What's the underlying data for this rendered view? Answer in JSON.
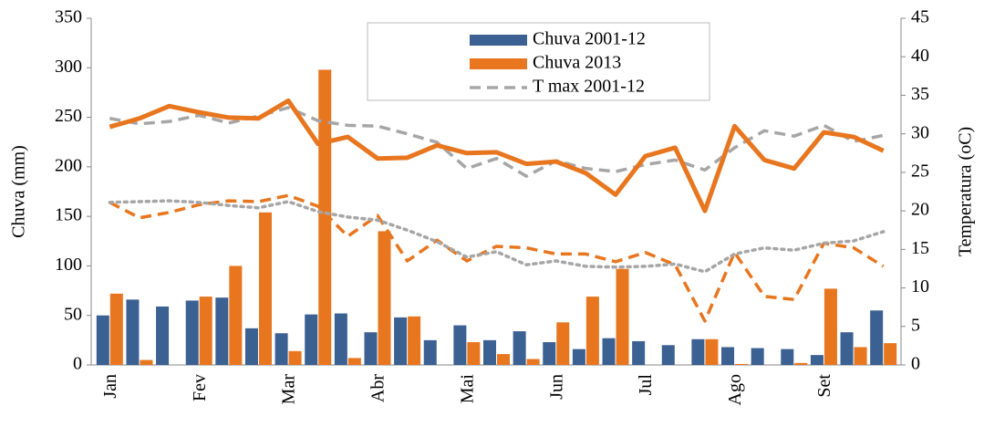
{
  "chart_data": {
    "type": "bar",
    "y_label": "Chuva (mm)",
    "y2_label": "Temperatura (oC)",
    "categories": [
      "Jan",
      null,
      null,
      "Fev",
      null,
      null,
      "Mar",
      null,
      null,
      "Abr",
      null,
      null,
      "Mai",
      null,
      null,
      "Jun",
      null,
      null,
      "Jul",
      null,
      null,
      "Ago",
      null,
      null,
      "Set",
      null,
      null
    ],
    "ylim": [
      0,
      350
    ],
    "yticks": [
      0,
      50,
      100,
      150,
      200,
      250,
      300,
      350
    ],
    "y2lim": [
      0,
      45
    ],
    "y2ticks": [
      0,
      5,
      10,
      15,
      20,
      25,
      30,
      35,
      40,
      45
    ],
    "series": [
      {
        "name": "Chuva 2001-12",
        "type": "bar",
        "color": "#3b6092",
        "values": [
          50,
          66,
          59,
          65,
          68,
          37,
          32,
          51,
          52,
          33,
          48,
          25,
          40,
          25,
          34,
          23,
          16,
          27,
          24,
          20,
          26,
          18,
          17,
          16,
          10,
          33,
          55
        ]
      },
      {
        "name": "Chuva 2013",
        "type": "bar",
        "color": "#e8761f",
        "values": [
          72,
          5,
          0,
          69,
          100,
          154,
          14,
          298,
          7,
          135,
          49,
          0,
          23,
          11,
          6,
          43,
          69,
          97,
          0,
          0,
          26,
          1,
          0,
          2,
          77,
          18,
          22
        ]
      },
      {
        "name": "T max 2001-12",
        "type": "line",
        "dash": "dashed",
        "axis": "y2",
        "color": "#a6a6a6",
        "values": [
          32.0,
          31.3,
          31.6,
          32.4,
          31.4,
          32.3,
          33.4,
          31.7,
          31.1,
          31.0,
          30.0,
          28.9,
          25.5,
          26.8,
          24.5,
          26.5,
          25.5,
          25.1,
          26.0,
          26.6,
          25.3,
          28.2,
          30.4,
          29.7,
          31.1,
          29.0,
          29.8
        ]
      },
      {
        "type": "line",
        "dash": "solid",
        "axis": "y2",
        "color": "#e8761f",
        "values": [
          30.9,
          32.0,
          33.6,
          32.8,
          32.1,
          32.0,
          34.3,
          28.7,
          29.6,
          26.8,
          26.9,
          28.5,
          27.5,
          27.6,
          26.1,
          26.4,
          24.9,
          22.1,
          27.1,
          28.2,
          20.0,
          31.0,
          26.6,
          25.5,
          30.2,
          29.6,
          27.8
        ]
      },
      {
        "type": "line",
        "dash": "dashed",
        "axis": "y2",
        "color": "#e8761f",
        "values": [
          21.1,
          19.1,
          19.8,
          20.8,
          21.3,
          21.2,
          22.0,
          20.6,
          16.7,
          19.4,
          13.5,
          16.2,
          13.5,
          15.4,
          15.2,
          14.4,
          14.4,
          13.4,
          14.6,
          13.0,
          5.7,
          14.6,
          8.9,
          8.5,
          15.8,
          15.2,
          12.8
        ]
      },
      {
        "type": "line",
        "dash": "dotted",
        "axis": "y2",
        "color": "#a6a6a6",
        "values": [
          21.1,
          21.2,
          21.3,
          21.1,
          20.7,
          20.4,
          21.2,
          19.9,
          19.2,
          18.8,
          17.5,
          16.0,
          14.0,
          14.7,
          13.0,
          13.5,
          12.8,
          12.7,
          12.8,
          13.1,
          12.1,
          14.4,
          15.2,
          14.9,
          15.8,
          16.1,
          17.3
        ]
      }
    ]
  }
}
